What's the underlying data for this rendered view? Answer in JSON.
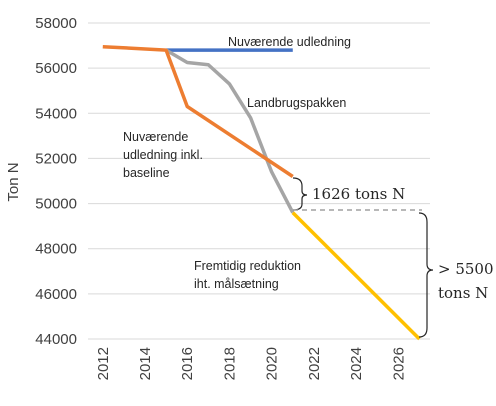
{
  "chart_data": {
    "type": "line",
    "title": "",
    "xlabel": "",
    "ylabel": "Ton N",
    "xlim": [
      2011.3,
      2027.5
    ],
    "ylim": [
      44000,
      58000
    ],
    "x_ticks": [
      "2012",
      "2014",
      "2016",
      "2018",
      "2020",
      "2022",
      "2024",
      "2026"
    ],
    "y_ticks": [
      "44000",
      "46000",
      "48000",
      "50000",
      "52000",
      "54000",
      "56000",
      "58000"
    ],
    "grid": "horizontal",
    "legend": "none",
    "series": [
      {
        "name": "Nuværende udledning",
        "color": "#4472C4",
        "points": [
          [
            2015,
            56800
          ],
          [
            2021,
            56800
          ]
        ]
      },
      {
        "name": "Landbrugspakken",
        "color": "#A5A5A5",
        "points": [
          [
            2015,
            56800
          ],
          [
            2016,
            56250
          ],
          [
            2017,
            56150
          ],
          [
            2018,
            55300
          ],
          [
            2019,
            53800
          ],
          [
            2020,
            51400
          ],
          [
            2021,
            49600
          ]
        ]
      },
      {
        "name": "Nuværende udledning inkl. baseline",
        "color": "#ED7D31",
        "points": [
          [
            2012,
            56950
          ],
          [
            2015,
            56800
          ],
          [
            2016,
            54300
          ],
          [
            2021,
            51200
          ]
        ]
      },
      {
        "name": "Fremtidig reduktion iht. målsætning",
        "color": "#FFC000",
        "points": [
          [
            2021,
            49600
          ],
          [
            2027,
            44000
          ]
        ]
      }
    ],
    "annotations": {
      "current": "Nuværende udledning",
      "landbrug": "Landbrugspakken",
      "baseline_lines": [
        "Nuværende",
        "udledning inkl.",
        "baseline"
      ],
      "future_lines": [
        "Fremtidig reduktion",
        "iht. målsætning"
      ],
      "gap1": "1626 tons N",
      "gap2_lines": [
        "> 5500",
        "tons N"
      ]
    }
  }
}
